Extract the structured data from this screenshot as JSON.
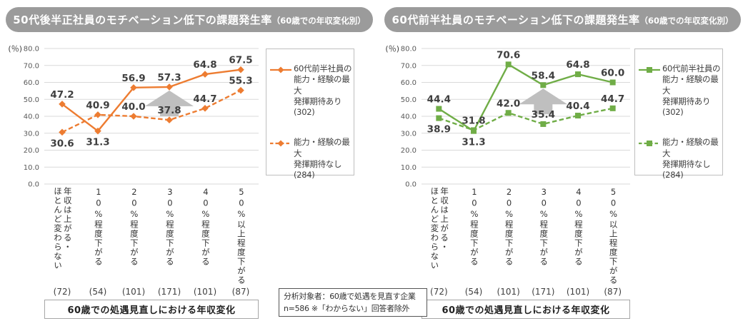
{
  "note": "分析対象者：60歳で処遇を見直す企業\nn=586 ※「わからない」回答者除外",
  "chart_data": [
    {
      "type": "line",
      "title_main": "50代後半正社員のモチベーション低下の課題発生率",
      "title_note": "（60歳での年収変化別）",
      "y_unit": "(％)",
      "ylabel": "",
      "xlabel_box": "60歳での処遇見直しにおける年収変化",
      "ylim": [
        0,
        80
      ],
      "ytick_step": 10,
      "grid": true,
      "legend_position": "right",
      "accent_color": "#ED7C31",
      "marker": "diamond",
      "categories": [
        "年収は上がる・\nほとんど変わらない",
        "10%程度下がる",
        "20%程度下がる",
        "30%程度下がる",
        "40%程度下がる",
        "50%以上程度下がる"
      ],
      "counts": [
        "(72)",
        "(54)",
        "(101)",
        "(171)",
        "(101)",
        "(87)"
      ],
      "series": [
        {
          "name": "60代前半社員の\n能力・経験の最大\n発揮期待あり\n(302)",
          "style": "solid",
          "values": [
            47.2,
            31.3,
            56.9,
            57.3,
            64.8,
            67.5
          ],
          "label_pos": [
            "above",
            "below",
            "above",
            "above",
            "above",
            "above"
          ]
        },
        {
          "name": "能力・経験の最大\n発揮期待なし\n(284)",
          "style": "dashed",
          "values": [
            30.6,
            40.9,
            40.0,
            37.8,
            44.7,
            55.3
          ],
          "label_pos": [
            "below",
            "above",
            "above",
            "above",
            "above",
            "above"
          ]
        }
      ],
      "arrow_category_index": 3
    },
    {
      "type": "line",
      "title_main": "60代前半社員のモチベーション低下の課題発生率",
      "title_note": "（60歳での年収変化別）",
      "y_unit": "(％)",
      "ylabel": "",
      "xlabel_box": "60歳での処遇見直しにおける年収変化",
      "ylim": [
        0,
        80
      ],
      "ytick_step": 10,
      "grid": true,
      "legend_position": "right",
      "accent_color": "#70AD47",
      "marker": "square",
      "categories": [
        "年収は上がる・\nほとんど変わらない",
        "10%程度下がる",
        "20%程度下がる",
        "30%程度下がる",
        "40%程度下がる",
        "50%以上程度下がる"
      ],
      "counts": [
        "(72)",
        "(54)",
        "(101)",
        "(171)",
        "(101)",
        "(87)"
      ],
      "series": [
        {
          "name": "60代前半社員の\n能力・経験の最大\n発揮期待あり\n(302)",
          "style": "solid",
          "values": [
            44.4,
            31.3,
            70.6,
            58.4,
            64.8,
            60.0
          ],
          "label_pos": [
            "above",
            "below",
            "above",
            "above",
            "above",
            "above"
          ]
        },
        {
          "name": "能力・経験の最大\n発揮期待なし\n(284)",
          "style": "dashed",
          "values": [
            38.9,
            31.8,
            42.0,
            35.4,
            40.4,
            44.7
          ],
          "label_pos": [
            "below",
            "above",
            "above",
            "above",
            "above",
            "above"
          ]
        }
      ],
      "arrow_category_index": 3
    }
  ]
}
